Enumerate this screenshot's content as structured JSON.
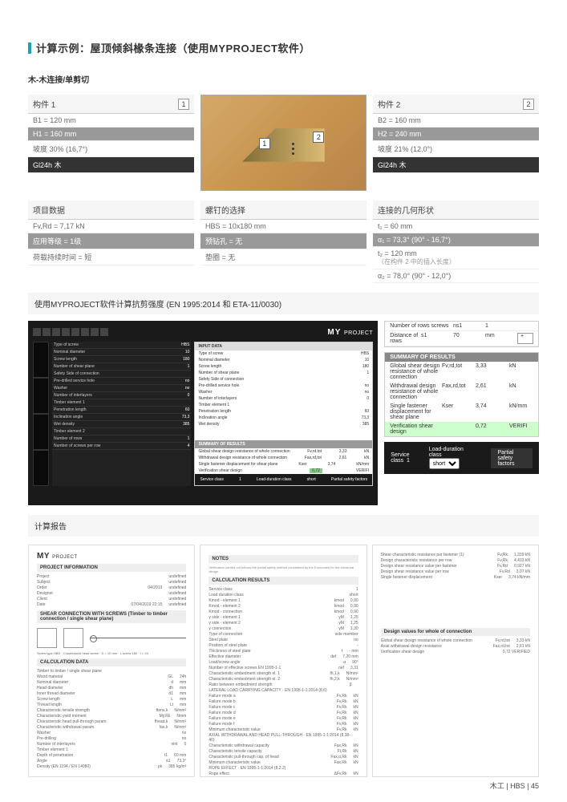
{
  "page": {
    "title": "计算示例：屋顶倾斜椽条连接（使用MYPROJECT软件）",
    "subtitle": "木-木连接/单剪切",
    "footer": "木工 | HBS | 45"
  },
  "member1": {
    "header": "构件 1",
    "index": "1",
    "rows": [
      {
        "text": "B1 = 120 mm",
        "style": ""
      },
      {
        "text": "H1 = 160 mm",
        "style": "dark"
      },
      {
        "text": "坡度 30% (16,7°)",
        "style": ""
      },
      {
        "text": "Gl24h 木",
        "style": "black"
      }
    ]
  },
  "member2": {
    "header": "构件 2",
    "index": "2",
    "rows": [
      {
        "text": "B2 = 160 mm",
        "style": ""
      },
      {
        "text": "H2 = 240 mm",
        "style": "dark"
      },
      {
        "text": "坡度 21% (12,0°)",
        "style": ""
      },
      {
        "text": "Gl24h 木",
        "style": "black"
      }
    ]
  },
  "project_data": {
    "header": "项目数据",
    "rows": [
      {
        "text": "Fv,Rd = 7,17 kN",
        "style": ""
      },
      {
        "text": "应用等级 = 1级",
        "style": "dark"
      },
      {
        "text": "荷载持续时间 = 短",
        "style": ""
      }
    ]
  },
  "screw": {
    "header": "螺钉的选择",
    "rows": [
      {
        "text": "HBS = 10x180 mm",
        "style": ""
      },
      {
        "text": "预钻孔 = 无",
        "style": "dark"
      },
      {
        "text": "垫圈 = 无",
        "style": ""
      }
    ]
  },
  "geometry": {
    "header": "连接的几何形状",
    "rows": [
      {
        "text": "t₁ = 60 mm",
        "style": ""
      },
      {
        "text": "α₁ = 73,3° (90° - 16,7°)",
        "style": "dark"
      },
      {
        "text": "t₂ = 120 mm",
        "sub": "（在构件 2 中的插入长度）",
        "style": ""
      },
      {
        "text": "α₂ = 78,0° (90° - 12,0°)",
        "style": ""
      }
    ]
  },
  "shear_calc": {
    "header": "使用MYPROJECT软件计算抗剪强度 (EN 1995:2014 和 ETA-11/0030)"
  },
  "sw": {
    "logo": "MY",
    "logo_sub": "PROJECT",
    "nrows_label": "Number of rows screws",
    "nrows": {
      "param": "ns1",
      "val": "1",
      "unit": ""
    },
    "dist_label": "Distance of rows",
    "dist": {
      "param": "s1",
      "val": "70",
      "unit": "mm"
    },
    "summary_head": "SUMMARY OF RESULTS",
    "results": [
      {
        "label": "Global shear design resistance of whole connection",
        "p": "Fv,rd,tot",
        "v": "3,33",
        "u": "kN"
      },
      {
        "label": "Withdrawal design resistance of whole connection",
        "p": "Fax,rd,tot",
        "v": "2,61",
        "u": "kN"
      },
      {
        "label": "Single fastener displacement for shear plane",
        "p": "Kser",
        "v": "3,74",
        "u": "kN/mm"
      },
      {
        "label": "Verification shear design",
        "p": "",
        "v": "0,72",
        "u": "VERIFI",
        "hl": true
      }
    ],
    "svc_label": "Service class",
    "svc": "1",
    "dur_label": "Load-duration class",
    "dur": "short",
    "psf": "Partial safety factors",
    "input_head": "INPUT DATA",
    "panel_rows": [
      {
        "l": "Type of screw",
        "v": "HBS"
      },
      {
        "l": "Nominal diameter",
        "v": "10"
      },
      {
        "l": "Screw length",
        "v": "180"
      },
      {
        "l": "Number of shear plane",
        "v": "1"
      },
      {
        "l": "Safety Side of connection",
        "v": ""
      },
      {
        "l": "Pre-drilled service hole",
        "v": "no"
      },
      {
        "l": "Washer",
        "v": "no"
      },
      {
        "l": "Number of interlayers",
        "v": "0"
      },
      {
        "l": "Timber element 1",
        "v": ""
      },
      {
        "l": "Penetration length",
        "v": "60"
      },
      {
        "l": "Inclination angle",
        "v": "73,3"
      },
      {
        "l": "Wet density",
        "v": "385"
      },
      {
        "l": "Timber element 2",
        "v": ""
      },
      {
        "l": "Number of rows",
        "v": "1"
      },
      {
        "l": "Number of screws per row",
        "v": "4"
      }
    ]
  },
  "report_header": "计算报告",
  "report1": {
    "logo": "MY",
    "logo_sub": "PROJECT",
    "sect1": "PROJECT INFORMATION",
    "rows1": [
      {
        "l": "Project",
        "v": ""
      },
      {
        "l": "Subject",
        "v": ""
      },
      {
        "l": "Order",
        "v": "04/2019"
      },
      {
        "l": "Designer",
        "v": ""
      },
      {
        "l": "Client",
        "v": ""
      },
      {
        "l": "Date",
        "v": "07/04/2019   22:15"
      }
    ],
    "sect2": "SHEAR CONNECTION WITH SCREWS (Timber to timber connection / single shear plane)",
    "diag_txt": "Screw type HBS · Countersunk head screw · D = 10 mm · L screw 180 · t = 24",
    "sect3": "CALCULATION DATA",
    "rows3": [
      {
        "l": "Timber to timber / single shear plane",
        "v": "",
        "u": ""
      },
      {
        "l": "Wood material",
        "v": "GL",
        "u": "24h"
      },
      {
        "l": "Nominal diameter",
        "v": "d",
        "u": "mm"
      },
      {
        "l": "Head diameter",
        "v": "dh",
        "u": "mm"
      },
      {
        "l": "Inner thread diameter",
        "v": "d1",
        "u": "mm"
      },
      {
        "l": "Screw length",
        "v": "L",
        "u": "mm"
      },
      {
        "l": "Thread length",
        "v": "Lt",
        "u": "mm"
      },
      {
        "l": "Characteristic tensile strength",
        "v": "ftens,k",
        "u": "N/mm²"
      },
      {
        "l": "Characteristic yield moment",
        "v": "My,Rk",
        "u": "Nmm"
      },
      {
        "l": "Characteristic head pull-through param.",
        "v": "fhead,k",
        "u": "N/mm²"
      },
      {
        "l": "Characteristic withdrawal param.",
        "v": "fax,k",
        "u": "N/mm²"
      },
      {
        "l": "Washer",
        "v": "",
        "u": "no"
      },
      {
        "l": "Pre-drilling",
        "v": "",
        "u": "no"
      },
      {
        "l": "Number of interlayers",
        "v": "nint",
        "u": "0"
      },
      {
        "l": "Timber element 1",
        "v": "",
        "u": ""
      },
      {
        "l": "Depth of penetration",
        "v": "t1",
        "u": "60 mm"
      },
      {
        "l": "Angle",
        "v": "α1",
        "u": "73,3°"
      },
      {
        "l": "Density (EN 1194 / EN 14080)",
        "v": "ρk",
        "u": "385 kg/m³"
      }
    ]
  },
  "report2": {
    "sect1": "NOTES",
    "note": "Verification carried out follows the partial safety method considered by the Eurocodes for the structural design.",
    "sect2": "CALCULATION RESULTS",
    "rows": [
      {
        "l": "Service class",
        "v": "",
        "u": "1"
      },
      {
        "l": "Load duration class",
        "v": "",
        "u": "short"
      },
      {
        "l": "Kmod - element 1",
        "v": "kmod",
        "u": "0,90"
      },
      {
        "l": "Kmod - element 2",
        "v": "kmod",
        "u": "0,90"
      },
      {
        "l": "Kmod - connection",
        "v": "kmod",
        "u": "0,90"
      },
      {
        "l": "γ side - element 1",
        "v": "γM",
        "u": "1,25"
      },
      {
        "l": "γ side - element 2",
        "v": "γM",
        "u": "1,25"
      },
      {
        "l": "γ connection",
        "v": "γM",
        "u": "1,30"
      },
      {
        "l": "Type of connection",
        "v": "",
        "u": "side member"
      },
      {
        "l": "Steel plate",
        "v": "",
        "u": "no"
      },
      {
        "l": "Position of steel plate",
        "v": "",
        "u": "-"
      },
      {
        "l": "Thickness of steel plate",
        "v": "t",
        "u": "- mm"
      },
      {
        "l": "Effective diameter",
        "v": "def",
        "u": "7,20 mm"
      },
      {
        "l": "Load/screw angle",
        "v": "α",
        "u": "90°"
      },
      {
        "l": "Number of effective screws EN 1995-1-1",
        "v": "nef",
        "u": "3,31"
      },
      {
        "l": "Characteristic embedment strength el. 1",
        "v": "fh,1,k",
        "u": "N/mm²"
      },
      {
        "l": "Characteristic embedment strength el. 2",
        "v": "fh,2,k",
        "u": "N/mm²"
      },
      {
        "l": "Ratio between embedment strength",
        "v": "β",
        "u": ""
      },
      {
        "l": "LATERAL LOAD CARRYING CAPACITY · EN 1995-1-1:2014 (8.6)",
        "v": "",
        "u": ""
      },
      {
        "l": "Failure mode a",
        "v": "Fv,Rk",
        "u": "kN"
      },
      {
        "l": "Failure mode b",
        "v": "Fv,Rk",
        "u": "kN"
      },
      {
        "l": "Failure mode c",
        "v": "Fv,Rk",
        "u": "kN"
      },
      {
        "l": "Failure mode d",
        "v": "Fv,Rk",
        "u": "kN"
      },
      {
        "l": "Failure mode e",
        "v": "Fv,Rk",
        "u": "kN"
      },
      {
        "l": "Failure mode f",
        "v": "Fv,Rk",
        "u": "kN"
      },
      {
        "l": "Minimum characteristic value",
        "v": "Fv,Rk",
        "u": "kN"
      },
      {
        "l": "AXIAL WITHDRAWAL AND HEAD PULL-THROUGH · EN 1995-1-1:2014 (8.38-40)",
        "v": "",
        "u": ""
      },
      {
        "l": "Characteristic withdrawal capacity",
        "v": "Fax,Rk",
        "u": "kN"
      },
      {
        "l": "Characteristic tensile capacity",
        "v": "Ft,Rk",
        "u": "kN"
      },
      {
        "l": "Characteristic pull-through cap. of head",
        "v": "Fax,α,Rk",
        "u": "kN"
      },
      {
        "l": "Minimum characteristic value",
        "v": "Fax,Rk",
        "u": "kN"
      },
      {
        "l": "ROPE EFFECT · EN 1995-1-1:2014 (8.2.2)",
        "v": "",
        "u": ""
      },
      {
        "l": "Rope effect",
        "v": "ΔFv,Rk",
        "u": "kN"
      },
      {
        "l": "Rope effect limited",
        "v": "ΔFv,Rk",
        "u": "kN"
      }
    ]
  },
  "report3": {
    "rows1": [
      {
        "l": "Shear characteristic resistance per fastener (1)",
        "v": "Fv,Rk",
        "u": "1,339   kN"
      },
      {
        "l": "Design characteristic resistance per row",
        "v": "Fv,Rk",
        "u": "4,433   kN"
      },
      {
        "l": "Design shear resistance value per fastener",
        "v": "Fv,Rd",
        "u": "0,927   kN"
      },
      {
        "l": "Design shear resistance value per row",
        "v": "Fv,Rd",
        "u": "3,07   kN"
      },
      {
        "l": "Single fastener displacement",
        "v": "Kser",
        "u": "3,74   kN/mm"
      }
    ],
    "sect1": "Design values for whole of connection",
    "rows2": [
      {
        "l": "Global shear design resistance of whole connection",
        "v": "Fv,rd,tot",
        "u": "3,33   kN"
      },
      {
        "l": "Axial withdrawal design resistance",
        "v": "Fax,rd,tot",
        "u": "2,61   kN"
      },
      {
        "l": "Verification shear design",
        "v": "",
        "u": "0,72   VERIFIED"
      }
    ]
  }
}
